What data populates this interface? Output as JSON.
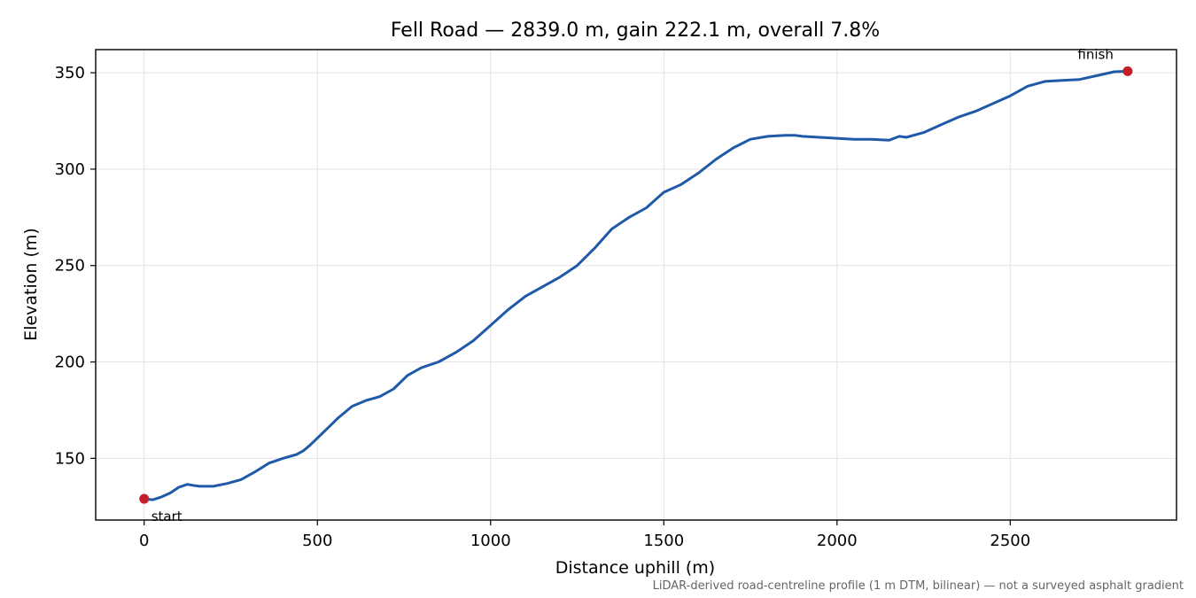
{
  "chart_data": {
    "type": "line",
    "title": "Fell Road — 2839.0 m, gain 222.1 m, overall 7.8%",
    "xlabel": "Distance uphill (m)",
    "ylabel": "Elevation (m)",
    "xlim": [
      -140,
      2980
    ],
    "ylim": [
      118,
      362
    ],
    "xticks": [
      0,
      500,
      1000,
      1500,
      2000,
      2500
    ],
    "yticks": [
      150,
      200,
      250,
      300,
      350
    ],
    "grid": true,
    "footnote": "LiDAR-derived road-centreline profile (1 m DTM, bilinear) — not a surveyed asphalt gradient",
    "colors": {
      "line": "#1f5aa8",
      "marker": "#c41e2a"
    },
    "series": [
      {
        "x": [
          0,
          25,
          50,
          75,
          100,
          125,
          140,
          160,
          200,
          240,
          280,
          320,
          360,
          400,
          440,
          460,
          480,
          520,
          560,
          600,
          640,
          680,
          720,
          760,
          800,
          850,
          900,
          950,
          1000,
          1050,
          1100,
          1150,
          1200,
          1250,
          1300,
          1350,
          1400,
          1450,
          1500,
          1550,
          1600,
          1650,
          1700,
          1750,
          1800,
          1850,
          1880,
          1900,
          1950,
          2000,
          2050,
          2100,
          2150,
          2180,
          2200,
          2250,
          2300,
          2350,
          2400,
          2450,
          2500,
          2550,
          2600,
          2650,
          2700,
          2750,
          2800,
          2839
        ],
        "y": [
          129,
          128.5,
          130,
          132,
          135,
          136.5,
          136,
          135.5,
          135.5,
          137,
          139,
          143,
          147.5,
          150,
          152,
          154,
          157,
          164,
          171,
          177,
          180,
          182,
          186,
          193,
          197,
          200,
          205,
          211,
          219,
          227,
          234,
          239,
          244,
          250,
          259,
          269,
          275,
          280,
          288,
          292,
          298,
          305,
          311,
          315.5,
          317,
          317.5,
          317.5,
          317,
          316.5,
          316,
          315.5,
          315.5,
          315,
          317,
          316.5,
          319,
          323,
          327,
          330,
          334,
          338,
          343,
          345.5,
          346,
          346.5,
          348.5,
          350.5,
          350.8
        ]
      }
    ],
    "points": [
      {
        "label": "start",
        "x": 0,
        "y": 129
      },
      {
        "label": "finish",
        "x": 2839,
        "y": 350.8
      }
    ]
  }
}
